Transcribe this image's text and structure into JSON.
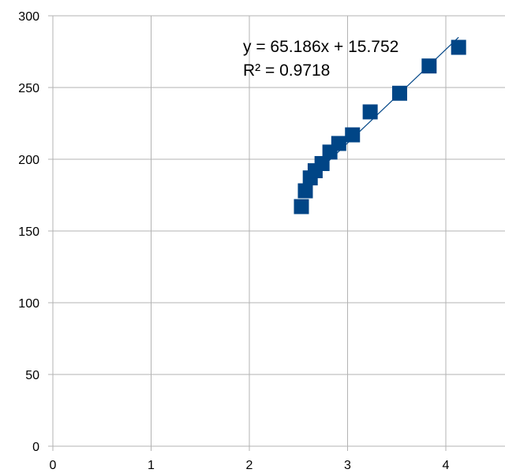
{
  "chart_data": {
    "type": "scatter",
    "title": "",
    "xlabel": "",
    "ylabel": "",
    "xlim": [
      0,
      4.5
    ],
    "ylim": [
      0,
      300
    ],
    "x_ticks": [
      0,
      1,
      2,
      3,
      4
    ],
    "y_ticks": [
      0,
      50,
      100,
      150,
      200,
      250,
      300
    ],
    "x_tick_labels": [
      "0",
      "1",
      "2",
      "3",
      "4"
    ],
    "y_tick_labels": [
      "0",
      "50",
      "100",
      "150",
      "200",
      "250",
      "300"
    ],
    "grid": true,
    "legend": "none",
    "marker": "square",
    "series": [
      {
        "color": "#004586",
        "points": [
          {
            "x": 2.53,
            "y": 167
          },
          {
            "x": 2.57,
            "y": 178
          },
          {
            "x": 2.62,
            "y": 187
          },
          {
            "x": 2.67,
            "y": 192
          },
          {
            "x": 2.74,
            "y": 197
          },
          {
            "x": 2.82,
            "y": 205
          },
          {
            "x": 2.91,
            "y": 211
          },
          {
            "x": 3.05,
            "y": 217
          },
          {
            "x": 3.23,
            "y": 233
          },
          {
            "x": 3.53,
            "y": 246
          },
          {
            "x": 3.83,
            "y": 265
          },
          {
            "x": 4.13,
            "y": 278
          }
        ]
      }
    ],
    "trendline": {
      "type": "linear",
      "slope": 65.186,
      "intercept": 15.752,
      "x_range": [
        2.53,
        4.13
      ],
      "color": "#004586",
      "equation_label": "y = 65.186x + 15.752",
      "r2_label": "R² = 0.9718"
    }
  }
}
